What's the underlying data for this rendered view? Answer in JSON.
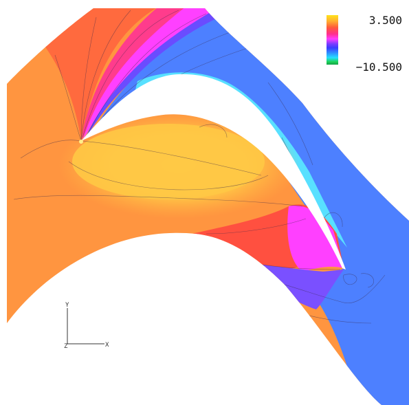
{
  "colorbar": {
    "max_label": "3.500",
    "min_label": "−10.500",
    "stops": [
      "#ffe31a",
      "#ffb030",
      "#ff6a3a",
      "#ff2f6e",
      "#ff3cff",
      "#8a3cff",
      "#3a3cff",
      "#2f8cff",
      "#23e0ff",
      "#1fd45a",
      "#12b04a"
    ]
  },
  "axes": {
    "y_label": "Y",
    "x_label": "X",
    "z_label": "Z"
  },
  "colors": {
    "yellow": "#ffc844",
    "orange": "#ff9a40",
    "red": "#ff5040",
    "magenta": "#ff40ff",
    "purple": "#7a50ff",
    "blue": "#4c7cff",
    "cyan": "#50e2ff"
  }
}
